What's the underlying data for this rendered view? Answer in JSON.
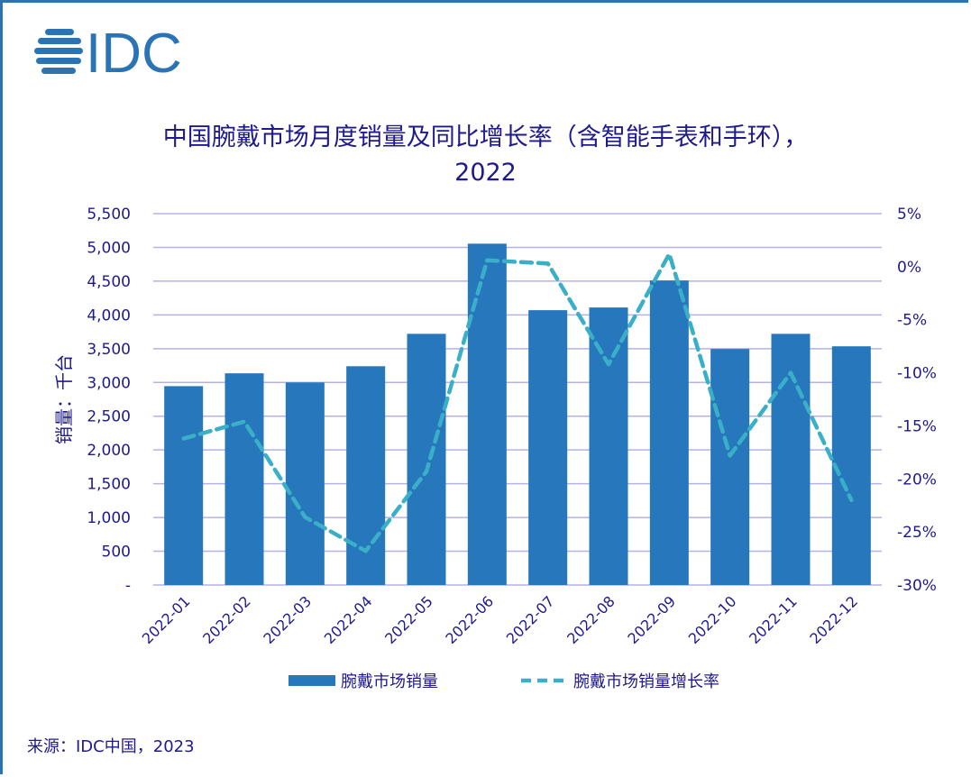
{
  "logo": {
    "text": "IDC",
    "color": "#2a74b5"
  },
  "source": "来源：IDC中国，2023",
  "chart_data": {
    "type": "bar+line",
    "title_line1": "中国腕戴市场月度销量及同比增长率（含智能手表和手环），",
    "title_line2": "2022",
    "ylabel": "销量：千台",
    "categories": [
      "2022-01",
      "2022-02",
      "2022-03",
      "2022-04",
      "2022-05",
      "2022-06",
      "2022-07",
      "2022-08",
      "2022-09",
      "2022-10",
      "2022-11",
      "2022-12"
    ],
    "series": [
      {
        "name": "腕戴市场销量",
        "type": "bar",
        "axis": "left",
        "color": "#2677bb",
        "values": [
          2945,
          3135,
          3000,
          3240,
          3720,
          5055,
          4070,
          4110,
          4510,
          3495,
          3720,
          3535
        ]
      },
      {
        "name": "腕戴市场销量增长率",
        "type": "line",
        "style": "dashed",
        "axis": "right",
        "color": "#3aafc7",
        "values": [
          -16.2,
          -14.6,
          -23.6,
          -26.8,
          -19.3,
          0.6,
          0.3,
          -9.2,
          1.2,
          -17.8,
          -10.0,
          -22.0
        ]
      }
    ],
    "y_left": {
      "range": [
        0,
        5500
      ],
      "ticks": [
        "-",
        "500",
        "1,000",
        "1,500",
        "2,000",
        "2,500",
        "3,000",
        "3,500",
        "4,000",
        "4,500",
        "5,000",
        "5,500"
      ]
    },
    "y_right": {
      "range": [
        -30,
        5
      ],
      "unit": "%",
      "ticks": [
        "-30%",
        "-25%",
        "-20%",
        "-15%",
        "-10%",
        "-5%",
        "0%",
        "5%"
      ]
    },
    "grid": true,
    "legend": "bottom",
    "grid_color": "#b5b2e6",
    "text_color": "#1f1a8c"
  }
}
